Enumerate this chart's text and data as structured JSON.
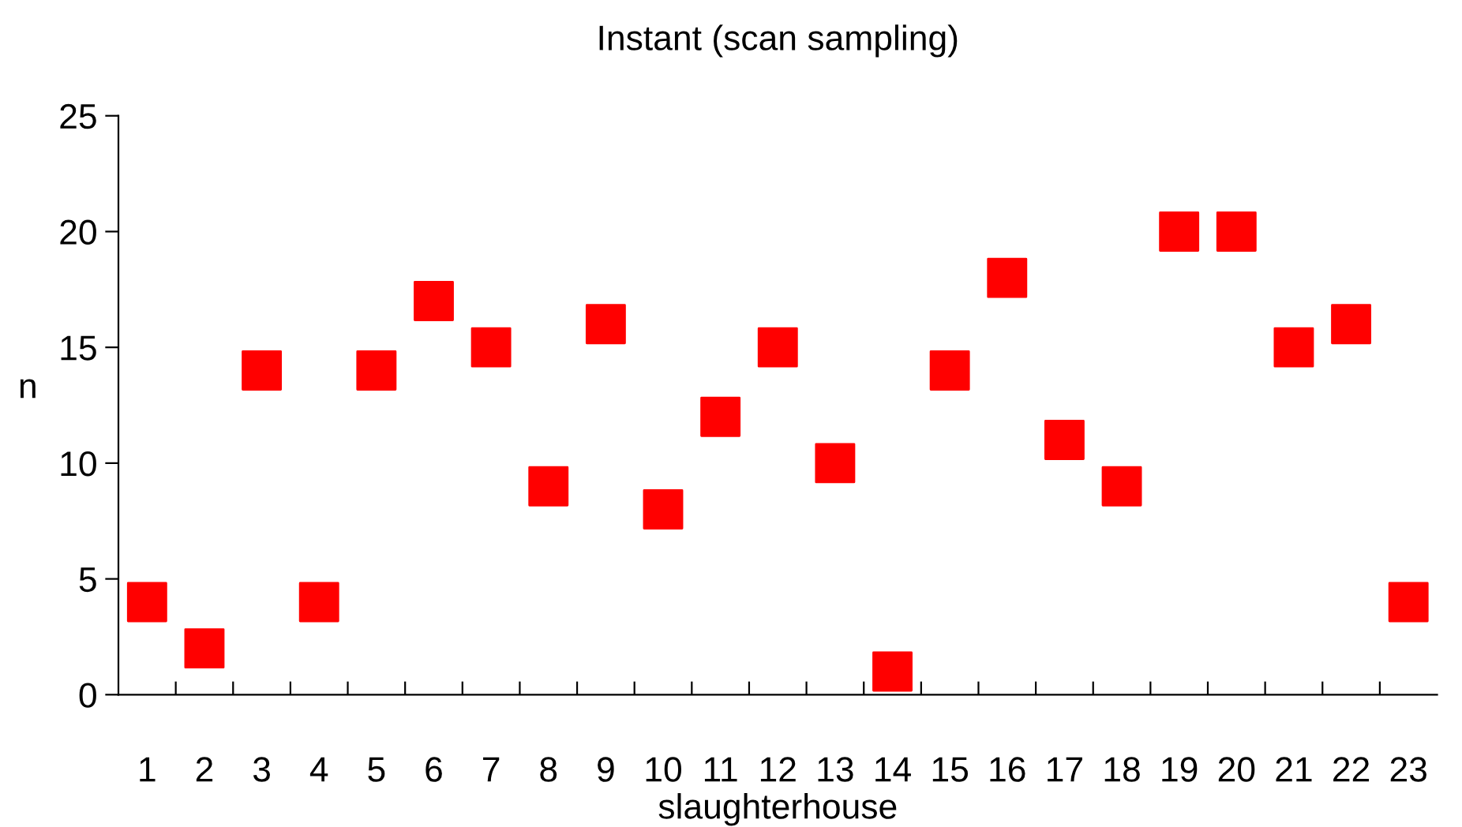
{
  "chart_data": {
    "type": "scatter",
    "title": "Instant (scan sampling)",
    "xlabel": "slaughterhouse",
    "ylabel": "n",
    "categories": [
      "1",
      "2",
      "3",
      "4",
      "5",
      "6",
      "7",
      "8",
      "9",
      "10",
      "11",
      "12",
      "13",
      "14",
      "15",
      "16",
      "17",
      "18",
      "19",
      "20",
      "21",
      "22",
      "23"
    ],
    "series": [
      {
        "color": "#ff0000",
        "values": [
          4,
          2,
          14,
          4,
          14,
          17,
          15,
          9,
          16,
          8,
          12,
          15,
          10,
          1,
          14,
          18,
          11,
          9,
          20,
          20,
          15,
          16,
          4
        ]
      }
    ],
    "ylim": [
      0,
      25
    ],
    "yticks": [
      0,
      5,
      10,
      15,
      20,
      25
    ],
    "marker": "square",
    "grid": false,
    "legend": false
  }
}
